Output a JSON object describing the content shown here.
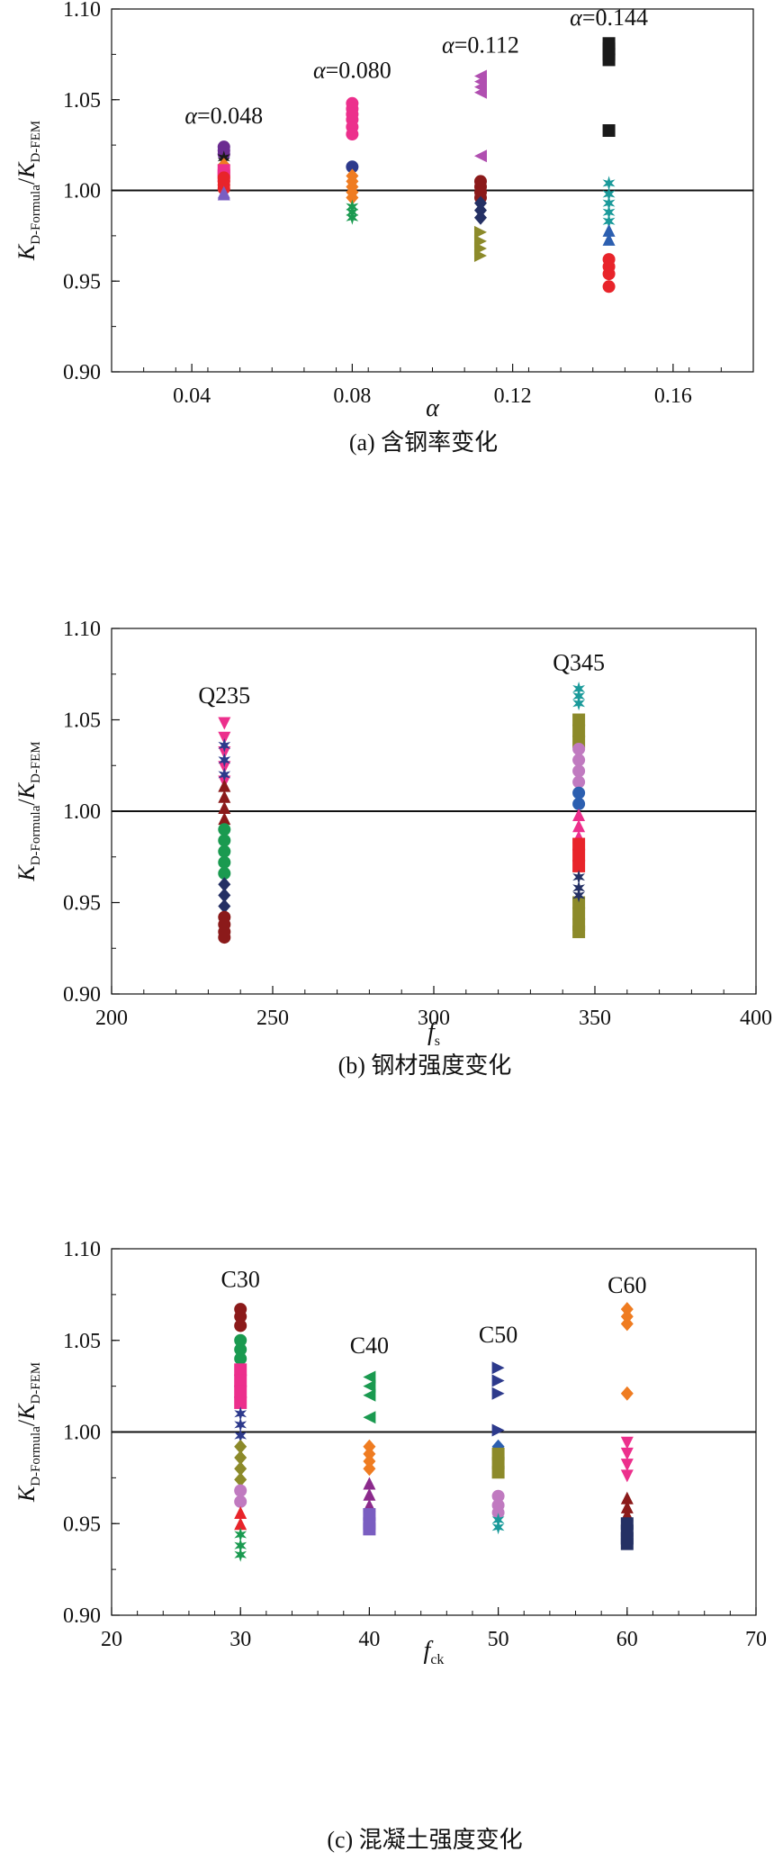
{
  "chart_data": [
    {
      "type": "scatter",
      "caption": "(a) 含钢率变化",
      "xlabel": "α",
      "ylabel_main": "K",
      "ylabel_sub1": "D-Formula",
      "ylabel_mid": "/",
      "ylabel_main2": "K",
      "ylabel_sub2": "D-FEM",
      "xlim": [
        0.02,
        0.18
      ],
      "ylim": [
        0.9,
        1.1
      ],
      "xticks": [
        0.04,
        0.08,
        0.12,
        0.16
      ],
      "xtick_labels": [
        "0.04",
        "0.08",
        "0.12",
        "0.16"
      ],
      "yticks": [
        0.9,
        0.95,
        1.0,
        1.05,
        1.1
      ],
      "ytick_labels": [
        "0.90",
        "0.95",
        "1.00",
        "1.05",
        "1.10"
      ],
      "reference_line": 1.0,
      "annotations": [
        {
          "text": "α=0.048",
          "x": 0.048,
          "y": 1.037
        },
        {
          "text": "α=0.080",
          "x": 0.08,
          "y": 1.062
        },
        {
          "text": "α=0.112",
          "x": 0.112,
          "y": 1.076
        },
        {
          "text": "α=0.144",
          "x": 0.144,
          "y": 1.091
        }
      ],
      "series": [
        {
          "x": 0.048,
          "marker": "circle",
          "color": "#6b2c91",
          "values": [
            1.024,
            1.022,
            1.02
          ]
        },
        {
          "x": 0.048,
          "marker": "star",
          "color": "#1a1a1a",
          "values": [
            1.018,
            1.016
          ]
        },
        {
          "x": 0.048,
          "marker": "diamond",
          "color": "#ef7c21",
          "values": [
            1.014,
            1.012,
            1.01
          ]
        },
        {
          "x": 0.048,
          "marker": "square",
          "color": "#ec2f8c",
          "values": [
            1.011,
            1.008
          ]
        },
        {
          "x": 0.048,
          "marker": "circle",
          "color": "#e8242a",
          "values": [
            1.007,
            1.005,
            1.003,
            1.001
          ]
        },
        {
          "x": 0.048,
          "marker": "triangle-up",
          "color": "#7a5ec1",
          "values": [
            0.999,
            0.998
          ]
        },
        {
          "x": 0.08,
          "marker": "circle",
          "color": "#ec2f8c",
          "values": [
            1.048,
            1.045,
            1.042,
            1.039,
            1.035,
            1.031
          ]
        },
        {
          "x": 0.08,
          "marker": "circle",
          "color": "#2d3a8c",
          "values": [
            1.013
          ]
        },
        {
          "x": 0.08,
          "marker": "diamond",
          "color": "#ef7c21",
          "values": [
            1.008,
            1.005,
            1.002,
            0.999,
            0.996
          ]
        },
        {
          "x": 0.08,
          "marker": "star",
          "color": "#1a9a50",
          "values": [
            0.991,
            0.988,
            0.985
          ]
        },
        {
          "x": 0.112,
          "marker": "triangle-left",
          "color": "#b04fb0",
          "values": [
            1.063,
            1.06,
            1.057,
            1.054,
            1.019
          ]
        },
        {
          "x": 0.112,
          "marker": "circle",
          "color": "#8b1a1a",
          "values": [
            1.005,
            1.002,
            0.999,
            0.996
          ]
        },
        {
          "x": 0.112,
          "marker": "diamond",
          "color": "#243064",
          "values": [
            0.993,
            0.989,
            0.985
          ]
        },
        {
          "x": 0.112,
          "marker": "triangle-right",
          "color": "#8c8a2a",
          "values": [
            0.977,
            0.972,
            0.968,
            0.964
          ]
        },
        {
          "x": 0.144,
          "marker": "square",
          "color": "#1a1a1a",
          "values": [
            1.081,
            1.078,
            1.075,
            1.072,
            1.033
          ]
        },
        {
          "x": 0.144,
          "marker": "star",
          "color": "#1a9a9a",
          "values": [
            1.004,
            0.998,
            0.993,
            0.988,
            0.983
          ]
        },
        {
          "x": 0.144,
          "marker": "triangle-up",
          "color": "#2c5fb0",
          "values": [
            0.978,
            0.973
          ]
        },
        {
          "x": 0.144,
          "marker": "circle",
          "color": "#e8242a",
          "values": [
            0.962,
            0.958,
            0.954,
            0.947
          ]
        }
      ]
    },
    {
      "type": "scatter",
      "caption": "(b) 钢材强度变化",
      "xlabel": "f",
      "xlabel_sub": "s",
      "ylabel_main": "K",
      "ylabel_sub1": "D-Formula",
      "ylabel_mid": "/",
      "ylabel_main2": "K",
      "ylabel_sub2": "D-FEM",
      "xlim": [
        200,
        400
      ],
      "ylim": [
        0.9,
        1.1
      ],
      "xticks": [
        200,
        250,
        300,
        350,
        400
      ],
      "xtick_labels": [
        "200",
        "250",
        "300",
        "350",
        "400"
      ],
      "yticks": [
        0.9,
        0.95,
        1.0,
        1.05,
        1.1
      ],
      "ytick_labels": [
        "0.90",
        "0.95",
        "1.00",
        "1.05",
        "1.10"
      ],
      "reference_line": 1.0,
      "annotations": [
        {
          "text": "Q235",
          "x": 235,
          "y": 1.059
        },
        {
          "text": "Q345",
          "x": 345,
          "y": 1.077
        }
      ],
      "series": [
        {
          "x": 235,
          "marker": "triangle-down",
          "color": "#ec2f8c",
          "values": [
            1.048,
            1.04,
            1.032,
            1.024,
            1.016
          ]
        },
        {
          "x": 235,
          "marker": "star",
          "color": "#2d3a8c",
          "values": [
            1.036,
            1.028,
            1.02
          ]
        },
        {
          "x": 235,
          "marker": "triangle-up",
          "color": "#8b1a1a",
          "values": [
            1.014,
            1.008,
            1.002,
            0.996
          ]
        },
        {
          "x": 235,
          "marker": "circle",
          "color": "#1a9a50",
          "values": [
            0.99,
            0.984,
            0.978,
            0.972,
            0.966
          ]
        },
        {
          "x": 235,
          "marker": "diamond",
          "color": "#243064",
          "values": [
            0.96,
            0.954,
            0.948
          ]
        },
        {
          "x": 235,
          "marker": "circle",
          "color": "#8b1a1a",
          "values": [
            0.942,
            0.938,
            0.934,
            0.931
          ]
        },
        {
          "x": 345,
          "marker": "star",
          "color": "#1a9a9a",
          "values": [
            1.067,
            1.063,
            1.059
          ]
        },
        {
          "x": 345,
          "marker": "square",
          "color": "#8c8a2a",
          "values": [
            1.05,
            1.044,
            1.038,
            0.95,
            0.944,
            0.938,
            0.934
          ]
        },
        {
          "x": 345,
          "marker": "circle",
          "color": "#c07ac0",
          "values": [
            1.034,
            1.028,
            1.022,
            1.016
          ]
        },
        {
          "x": 345,
          "marker": "circle",
          "color": "#2c5fb0",
          "values": [
            1.01,
            1.004
          ]
        },
        {
          "x": 345,
          "marker": "triangle-up",
          "color": "#ec2f8c",
          "values": [
            0.998,
            0.992,
            0.986
          ]
        },
        {
          "x": 345,
          "marker": "square",
          "color": "#e8242a",
          "values": [
            0.982,
            0.976,
            0.97
          ]
        },
        {
          "x": 345,
          "marker": "star",
          "color": "#243064",
          "values": [
            0.964,
            0.958,
            0.954
          ]
        }
      ]
    },
    {
      "type": "scatter",
      "caption": "(c) 混凝土强度变化",
      "xlabel": "f",
      "xlabel_sub": "ck",
      "ylabel_main": "K",
      "ylabel_sub1": "D-Formula",
      "ylabel_mid": "/",
      "ylabel_main2": "K",
      "ylabel_sub2": "D-FEM",
      "xlim": [
        20,
        70
      ],
      "ylim": [
        0.9,
        1.1
      ],
      "xticks": [
        20,
        30,
        40,
        50,
        60,
        70
      ],
      "xtick_labels": [
        "20",
        "30",
        "40",
        "50",
        "60",
        "70"
      ],
      "yticks": [
        0.9,
        0.95,
        1.0,
        1.05,
        1.1
      ],
      "ytick_labels": [
        "0.90",
        "0.95",
        "1.00",
        "1.05",
        "1.10"
      ],
      "reference_line": 1.0,
      "annotations": [
        {
          "text": "C30",
          "x": 30,
          "y": 1.079
        },
        {
          "text": "C40",
          "x": 40,
          "y": 1.043
        },
        {
          "text": "C50",
          "x": 50,
          "y": 1.049
        },
        {
          "text": "C60",
          "x": 60,
          "y": 1.076
        }
      ],
      "series": [
        {
          "x": 30,
          "marker": "circle",
          "color": "#8b1a1a",
          "values": [
            1.067,
            1.063,
            1.058
          ]
        },
        {
          "x": 30,
          "marker": "circle",
          "color": "#1a9a50",
          "values": [
            1.05,
            1.045,
            1.04
          ]
        },
        {
          "x": 30,
          "marker": "square",
          "color": "#ec2f8c",
          "values": [
            1.034,
            1.028,
            1.022,
            1.016
          ]
        },
        {
          "x": 30,
          "marker": "star",
          "color": "#2d3a8c",
          "values": [
            1.01,
            1.004,
            0.998
          ]
        },
        {
          "x": 30,
          "marker": "diamond",
          "color": "#8c8a2a",
          "values": [
            0.992,
            0.986,
            0.98,
            0.974
          ]
        },
        {
          "x": 30,
          "marker": "circle",
          "color": "#c07ac0",
          "values": [
            0.968,
            0.962
          ]
        },
        {
          "x": 30,
          "marker": "triangle-up",
          "color": "#e8242a",
          "values": [
            0.956,
            0.95
          ]
        },
        {
          "x": 30,
          "marker": "star",
          "color": "#1a9a50",
          "values": [
            0.944,
            0.938,
            0.933
          ]
        },
        {
          "x": 40,
          "marker": "triangle-left",
          "color": "#1a9a50",
          "values": [
            1.03,
            1.025,
            1.02,
            1.008
          ]
        },
        {
          "x": 40,
          "marker": "diamond",
          "color": "#ef7c21",
          "values": [
            0.992,
            0.988,
            0.984,
            0.98
          ]
        },
        {
          "x": 40,
          "marker": "triangle-up",
          "color": "#8b2a8c",
          "values": [
            0.972,
            0.966,
            0.96
          ]
        },
        {
          "x": 40,
          "marker": "square",
          "color": "#7a5ec1",
          "values": [
            0.955,
            0.95,
            0.947
          ]
        },
        {
          "x": 50,
          "marker": "triangle-right",
          "color": "#2d3a8c",
          "values": [
            1.035,
            1.028,
            1.021,
            1.001
          ]
        },
        {
          "x": 50,
          "marker": "diamond",
          "color": "#2c5fb0",
          "values": [
            0.992
          ]
        },
        {
          "x": 50,
          "marker": "square",
          "color": "#8c8a2a",
          "values": [
            0.988,
            0.983,
            0.978
          ]
        },
        {
          "x": 50,
          "marker": "circle",
          "color": "#c07ac0",
          "values": [
            0.965,
            0.96,
            0.956
          ]
        },
        {
          "x": 50,
          "marker": "star",
          "color": "#1a9a9a",
          "values": [
            0.952,
            0.948
          ]
        },
        {
          "x": 60,
          "marker": "diamond",
          "color": "#ef7c21",
          "values": [
            1.067,
            1.063,
            1.059,
            1.021
          ]
        },
        {
          "x": 60,
          "marker": "triangle-down",
          "color": "#ec2f8c",
          "values": [
            0.994,
            0.988,
            0.982,
            0.976
          ]
        },
        {
          "x": 60,
          "marker": "triangle-up",
          "color": "#8b1a1a",
          "values": [
            0.964,
            0.959,
            0.955
          ]
        },
        {
          "x": 60,
          "marker": "square",
          "color": "#243064",
          "values": [
            0.95,
            0.946,
            0.942,
            0.939
          ]
        }
      ]
    }
  ]
}
